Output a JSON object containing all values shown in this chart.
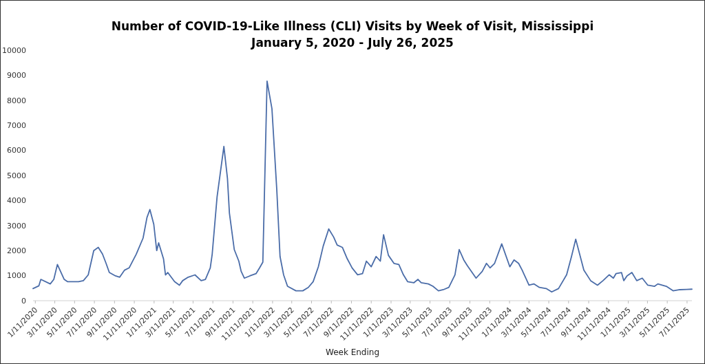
{
  "chart_data": {
    "type": "line",
    "title": "Number of COVID-19-Like Illness (CLI) Visits by Week of Visit, Mississippi",
    "subtitle": "January 5, 2020 - July 26, 2025",
    "xlabel": "Week Ending",
    "x": [
      "2020-01-04",
      "2020-01-22",
      "2020-01-28",
      "2020-02-26",
      "2020-03-08",
      "2020-03-19",
      "2020-04-09",
      "2020-04-19",
      "2020-05-10",
      "2020-05-23",
      "2020-06-07",
      "2020-06-22",
      "2020-07-09",
      "2020-07-23",
      "2020-08-05",
      "2020-08-16",
      "2020-08-26",
      "2020-09-14",
      "2020-09-27",
      "2020-10-12",
      "2020-10-26",
      "2020-11-17",
      "2020-12-08",
      "2020-12-20",
      "2020-12-29",
      "2021-01-10",
      "2021-01-19",
      "2021-01-25",
      "2021-02-09",
      "2021-02-15",
      "2021-02-22",
      "2021-03-15",
      "2021-03-30",
      "2021-04-09",
      "2021-04-26",
      "2021-05-17",
      "2021-06-05",
      "2021-06-18",
      "2021-07-03",
      "2021-07-09",
      "2021-07-24",
      "2021-08-14",
      "2021-08-25",
      "2021-08-31",
      "2021-09-15",
      "2021-09-29",
      "2021-10-06",
      "2021-10-16",
      "2021-11-02",
      "2021-11-21",
      "2021-12-02",
      "2021-12-12",
      "2021-12-25",
      "2022-01-09",
      "2022-01-24",
      "2022-02-03",
      "2022-02-14",
      "2022-02-26",
      "2022-03-24",
      "2022-04-14",
      "2022-05-01",
      "2022-05-16",
      "2022-06-01",
      "2022-06-16",
      "2022-07-03",
      "2022-07-18",
      "2022-07-29",
      "2022-08-14",
      "2022-08-29",
      "2022-09-13",
      "2022-09-30",
      "2022-10-15",
      "2022-10-27",
      "2022-11-11",
      "2022-11-26",
      "2022-12-09",
      "2022-12-19",
      "2023-01-03",
      "2023-01-20",
      "2023-02-04",
      "2023-02-18",
      "2023-03-03",
      "2023-03-22",
      "2023-04-04",
      "2023-04-14",
      "2023-05-06",
      "2023-05-20",
      "2023-06-06",
      "2023-06-21",
      "2023-07-08",
      "2023-07-27",
      "2023-08-09",
      "2023-08-23",
      "2023-09-03",
      "2023-09-30",
      "2023-10-19",
      "2023-11-01",
      "2023-11-12",
      "2023-11-26",
      "2023-12-18",
      "2024-01-12",
      "2024-01-25",
      "2024-02-08",
      "2024-02-19",
      "2024-03-11",
      "2024-03-26",
      "2024-04-12",
      "2024-05-03",
      "2024-05-20",
      "2024-06-10",
      "2024-07-05",
      "2024-07-20",
      "2024-08-02",
      "2024-08-27",
      "2024-09-17",
      "2024-10-08",
      "2024-10-25",
      "2024-11-13",
      "2024-11-26",
      "2024-12-04",
      "2024-12-21",
      "2024-12-28",
      "2025-01-07",
      "2025-01-22",
      "2025-02-06",
      "2025-02-23",
      "2025-03-12",
      "2025-04-02",
      "2025-04-12",
      "2025-05-08",
      "2025-05-29",
      "2025-06-19",
      "2025-07-10",
      "2025-07-26"
    ],
    "series": [
      {
        "color": "#4a6ca8",
        "values": [
          485,
          595,
          850,
          670,
          850,
          1445,
          850,
          760,
          760,
          760,
          800,
          1030,
          2000,
          2130,
          1860,
          1490,
          1125,
          990,
          940,
          1220,
          1310,
          1860,
          2500,
          3320,
          3640,
          3050,
          2000,
          2310,
          1670,
          1030,
          1125,
          760,
          620,
          800,
          940,
          1030,
          800,
          850,
          1310,
          1860,
          4145,
          6160,
          4880,
          3500,
          2040,
          1580,
          1180,
          900,
          990,
          1080,
          1310,
          1540,
          8765,
          7670,
          4420,
          1765,
          1030,
          575,
          395,
          395,
          530,
          760,
          1355,
          2180,
          2865,
          2545,
          2220,
          2130,
          1675,
          1310,
          1035,
          1080,
          1580,
          1355,
          1765,
          1580,
          2635,
          1810,
          1490,
          1445,
          1035,
          760,
          715,
          850,
          715,
          670,
          575,
          395,
          440,
          530,
          1035,
          2040,
          1630,
          1400,
          900,
          1170,
          1490,
          1310,
          1490,
          2270,
          1355,
          1630,
          1490,
          1220,
          620,
          670,
          530,
          485,
          350,
          485,
          1035,
          1765,
          2455,
          1220,
          800,
          620,
          800,
          1035,
          900,
          1080,
          1125,
          800,
          990,
          1125,
          800,
          900,
          620,
          575,
          670,
          575,
          395,
          440,
          450,
          460
        ]
      }
    ],
    "xlim": [
      "2020-01-04",
      "2025-07-26"
    ],
    "xticks": [
      {
        "value": "2020-01-11",
        "label": "1/11/2020"
      },
      {
        "value": "2020-03-11",
        "label": "3/11/2020"
      },
      {
        "value": "2020-05-11",
        "label": "5/11/2020"
      },
      {
        "value": "2020-07-11",
        "label": "7/11/2020"
      },
      {
        "value": "2020-09-11",
        "label": "9/11/2020"
      },
      {
        "value": "2020-11-11",
        "label": "11/11/2020"
      },
      {
        "value": "2021-01-11",
        "label": "1/11/2021"
      },
      {
        "value": "2021-03-11",
        "label": "3/11/2021"
      },
      {
        "value": "2021-05-11",
        "label": "5/11/2021"
      },
      {
        "value": "2021-07-11",
        "label": "7/11/2021"
      },
      {
        "value": "2021-09-11",
        "label": "9/11/2021"
      },
      {
        "value": "2021-11-11",
        "label": "11/11/2021"
      },
      {
        "value": "2022-01-11",
        "label": "1/11/2022"
      },
      {
        "value": "2022-03-11",
        "label": "3/11/2022"
      },
      {
        "value": "2022-05-11",
        "label": "5/11/2022"
      },
      {
        "value": "2022-07-11",
        "label": "7/11/2022"
      },
      {
        "value": "2022-09-11",
        "label": "9/11/2022"
      },
      {
        "value": "2022-11-11",
        "label": "11/11/2022"
      },
      {
        "value": "2023-01-11",
        "label": "1/11/2023"
      },
      {
        "value": "2023-03-11",
        "label": "3/11/2023"
      },
      {
        "value": "2023-05-11",
        "label": "5/11/2023"
      },
      {
        "value": "2023-07-11",
        "label": "7/11/2023"
      },
      {
        "value": "2023-09-11",
        "label": "9/11/2023"
      },
      {
        "value": "2023-11-11",
        "label": "11/11/2023"
      },
      {
        "value": "2024-01-11",
        "label": "1/11/2024"
      },
      {
        "value": "2024-03-11",
        "label": "3/11/2024"
      },
      {
        "value": "2024-05-11",
        "label": "5/11/2024"
      },
      {
        "value": "2024-07-11",
        "label": "7/11/2024"
      },
      {
        "value": "2024-09-11",
        "label": "9/11/2024"
      },
      {
        "value": "2024-11-11",
        "label": "11/11/2024"
      },
      {
        "value": "2025-01-11",
        "label": "1/11/2025"
      },
      {
        "value": "2025-03-11",
        "label": "3/11/2025"
      },
      {
        "value": "2025-05-11",
        "label": "5/11/2025"
      },
      {
        "value": "2025-07-11",
        "label": "7/11/2025"
      }
    ],
    "ylim": [
      0,
      10000
    ],
    "yticks": [
      0,
      1000,
      2000,
      3000,
      4000,
      5000,
      6000,
      7000,
      8000,
      9000,
      10000
    ]
  }
}
